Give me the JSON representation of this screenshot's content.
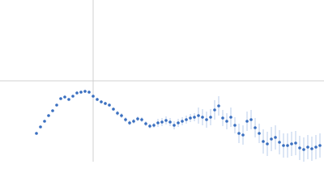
{
  "chart_data": {
    "type": "scatter",
    "xlim": [
      0,
      400
    ],
    "ylim": [
      0,
      200
    ],
    "color": "#3a6fc0",
    "error_color": "#a9c1e6",
    "series": [
      {
        "x": [
          45,
          50,
          55,
          60,
          65,
          70,
          75,
          80,
          85,
          90,
          95,
          100,
          105,
          110,
          115,
          120,
          125,
          130,
          135,
          140,
          145,
          150,
          155,
          160,
          165,
          170,
          175,
          180,
          185,
          190,
          195,
          200,
          205,
          210,
          215,
          220,
          225,
          230,
          235,
          240,
          245,
          250,
          255,
          260,
          265,
          270,
          275,
          280,
          285,
          290,
          295,
          300,
          305,
          310,
          315,
          320,
          325,
          330,
          335,
          340,
          345,
          350,
          355,
          360,
          365,
          370,
          375,
          380,
          385,
          390,
          395
        ],
        "values": [
          35,
          43,
          50,
          57,
          63,
          70,
          78,
          80,
          77,
          81,
          85,
          86,
          87,
          86,
          81,
          77,
          74,
          72,
          70,
          65,
          60,
          57,
          52,
          48,
          50,
          53,
          52,
          47,
          44,
          45,
          48,
          49,
          51,
          49,
          45,
          48,
          50,
          52,
          54,
          55,
          57,
          55,
          52,
          55,
          64,
          69,
          54,
          50,
          55,
          45,
          35,
          33,
          50,
          52,
          42,
          35,
          25,
          22,
          28,
          30,
          24,
          20,
          20,
          22,
          23,
          17,
          15,
          18,
          16,
          18,
          20
        ],
        "errors": [
          1,
          1,
          1,
          1,
          1,
          1,
          1,
          1,
          1,
          1,
          2,
          2,
          2,
          2,
          2,
          2,
          2,
          2,
          2,
          2,
          3,
          3,
          3,
          3,
          3,
          3,
          3,
          3,
          3,
          3,
          5,
          5,
          5,
          5,
          5,
          5,
          5,
          5,
          5,
          5,
          10,
          10,
          10,
          10,
          12,
          12,
          10,
          10,
          12,
          10,
          12,
          12,
          12,
          12,
          12,
          12,
          15,
          15,
          15,
          15,
          15,
          15,
          15,
          15,
          15,
          15,
          15,
          15,
          15,
          15,
          15
        ]
      }
    ]
  }
}
